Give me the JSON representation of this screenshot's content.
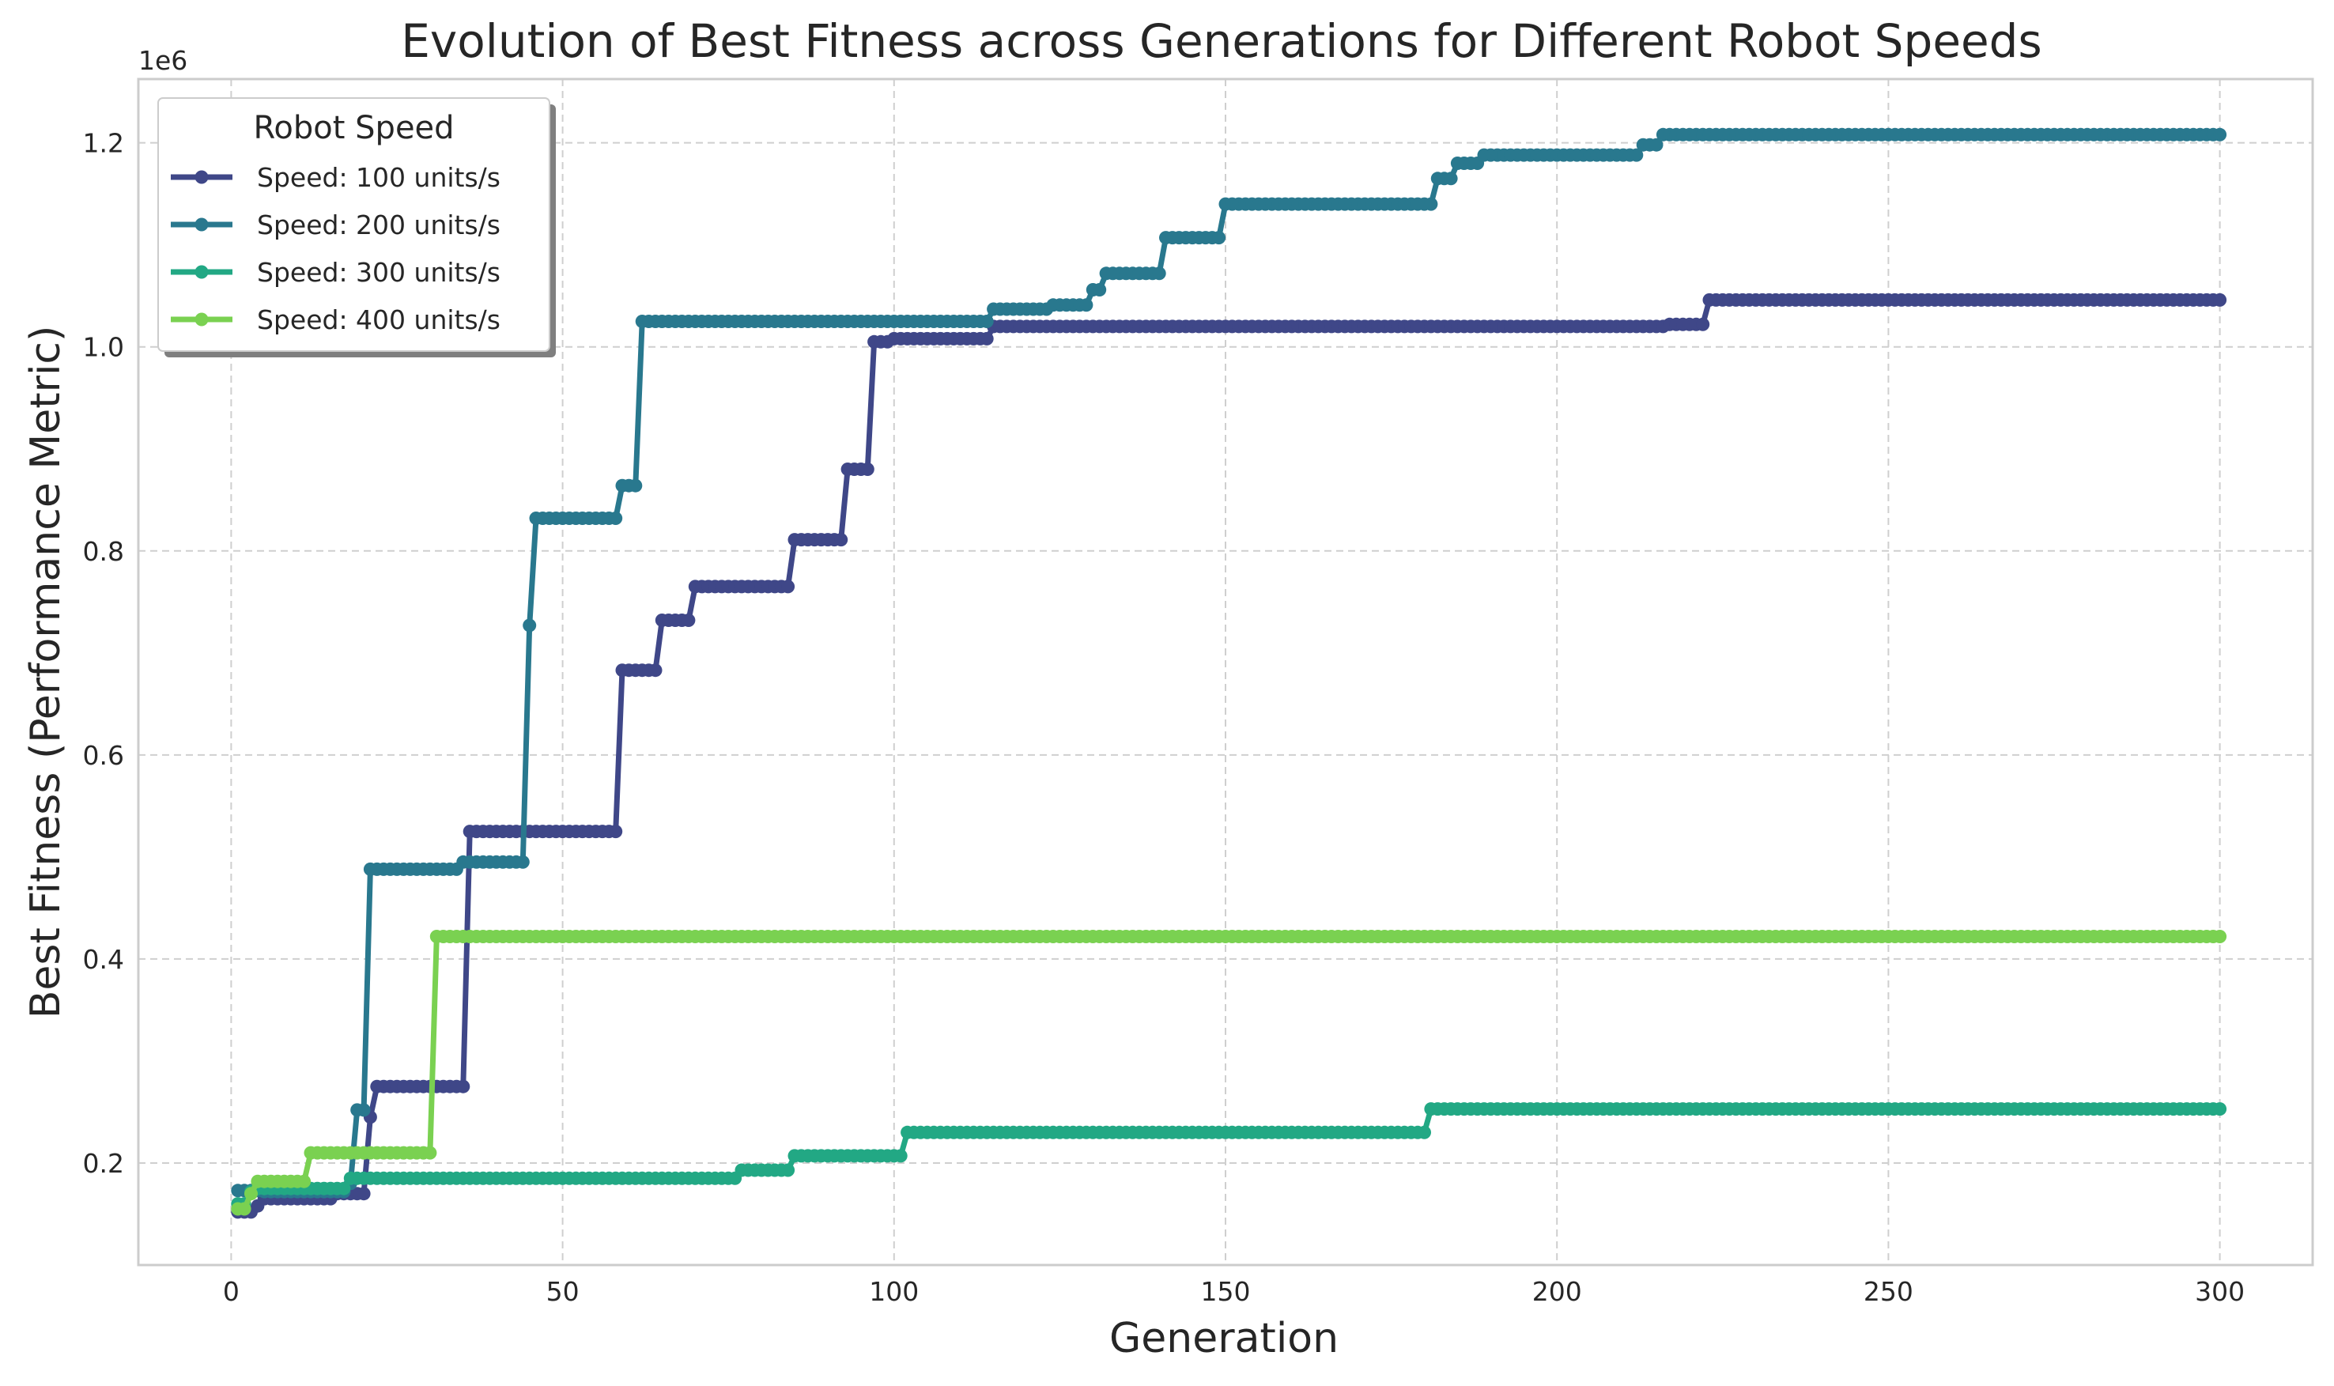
{
  "chart_data": {
    "type": "line",
    "title": "Evolution of Best Fitness across Generations for Different Robot Speeds",
    "xlabel": "Generation",
    "ylabel": "Best Fitness (Performance Metric)",
    "y_offset_label": "1e6",
    "xlim": [
      -14,
      314
    ],
    "ylim": [
      100000,
      1262500
    ],
    "x_ticks": [
      0,
      50,
      100,
      150,
      200,
      250,
      300
    ],
    "x_tick_labels": [
      "0",
      "50",
      "100",
      "150",
      "200",
      "250",
      "300"
    ],
    "y_ticks": [
      200000,
      400000,
      600000,
      800000,
      1000000,
      1200000
    ],
    "y_tick_labels": [
      "0.2",
      "0.4",
      "0.6",
      "0.8",
      "1.0",
      "1.2"
    ],
    "grid": true,
    "legend": {
      "title": "Robot Speed",
      "position": "top-left"
    },
    "x_range": [
      1,
      300
    ],
    "series": [
      {
        "name": "Speed: 100 units/s",
        "color": "#3f4788",
        "steps": [
          [
            1,
            152000
          ],
          [
            4,
            158000
          ],
          [
            5,
            165000
          ],
          [
            16,
            170000
          ],
          [
            21,
            245000
          ],
          [
            22,
            275000
          ],
          [
            36,
            525000
          ],
          [
            59,
            683000
          ],
          [
            65,
            732000
          ],
          [
            70,
            765000
          ],
          [
            85,
            811000
          ],
          [
            93,
            880000
          ],
          [
            97,
            1005000
          ],
          [
            100,
            1008000
          ],
          [
            115,
            1020000
          ],
          [
            217,
            1022000
          ],
          [
            223,
            1046000
          ]
        ]
      },
      {
        "name": "Speed: 200 units/s",
        "color": "#29788e",
        "steps": [
          [
            1,
            173000
          ],
          [
            3,
            173000
          ],
          [
            5,
            172000
          ],
          [
            18,
            180000
          ],
          [
            19,
            252000
          ],
          [
            21,
            488000
          ],
          [
            35,
            495000
          ],
          [
            45,
            727000
          ],
          [
            46,
            832000
          ],
          [
            59,
            864000
          ],
          [
            62,
            1025000
          ],
          [
            115,
            1037000
          ],
          [
            124,
            1041000
          ],
          [
            130,
            1056000
          ],
          [
            132,
            1072000
          ],
          [
            141,
            1107000
          ],
          [
            150,
            1140000
          ],
          [
            182,
            1165000
          ],
          [
            185,
            1180000
          ],
          [
            189,
            1188000
          ],
          [
            213,
            1198000
          ],
          [
            216,
            1208000
          ]
        ]
      },
      {
        "name": "Speed: 300 units/s",
        "color": "#22a884",
        "steps": [
          [
            1,
            160000
          ],
          [
            2,
            160000
          ],
          [
            3,
            172000
          ],
          [
            4,
            175000
          ],
          [
            18,
            185000
          ],
          [
            77,
            193000
          ],
          [
            85,
            207000
          ],
          [
            102,
            230000
          ],
          [
            181,
            253000
          ]
        ]
      },
      {
        "name": "Speed: 400 units/s",
        "color": "#7ad151",
        "steps": [
          [
            1,
            155000
          ],
          [
            3,
            170000
          ],
          [
            4,
            182000
          ],
          [
            12,
            210000
          ],
          [
            31,
            422000
          ]
        ]
      }
    ]
  }
}
